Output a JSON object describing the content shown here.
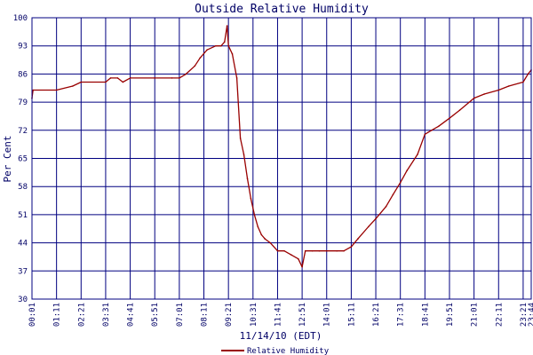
{
  "chart_data": {
    "type": "line",
    "title": "Outside Relative Humidity",
    "xlabel": "11/14/10 (EDT)",
    "ylabel": "Per Cent",
    "ylim": [
      30,
      100
    ],
    "xlim": [
      "00:01",
      "23:44"
    ],
    "grid": true,
    "legend_position": "bottom-center",
    "colors": {
      "series": "#990000",
      "grid": "#000080",
      "text": "#000066",
      "background": "#ffffff"
    },
    "y_ticks": [
      30,
      37,
      44,
      51,
      58,
      65,
      72,
      79,
      86,
      93,
      100
    ],
    "x_tick_labels": [
      "00:01",
      "01:11",
      "02:21",
      "03:31",
      "04:41",
      "05:51",
      "07:01",
      "08:11",
      "09:21",
      "10:31",
      "11:41",
      "12:51",
      "14:01",
      "15:11",
      "16:21",
      "17:31",
      "18:41",
      "19:51",
      "21:01",
      "22:11",
      "23:21",
      "23:44"
    ],
    "series": [
      {
        "name": "Relative Humidity",
        "x": [
          "00:01",
          "00:04",
          "01:11",
          "01:57",
          "02:21",
          "03:31",
          "03:45",
          "04:05",
          "04:20",
          "04:41",
          "05:51",
          "06:40",
          "07:01",
          "07:20",
          "07:45",
          "08:00",
          "08:20",
          "08:45",
          "09:00",
          "09:10",
          "09:17",
          "09:21",
          "09:32",
          "09:45",
          "09:55",
          "10:05",
          "10:15",
          "10:25",
          "10:35",
          "10:45",
          "10:55",
          "11:05",
          "11:20",
          "11:41",
          "12:00",
          "12:20",
          "12:40",
          "12:51",
          "13:00",
          "13:20",
          "13:40",
          "14:01",
          "14:30",
          "14:50",
          "15:11",
          "15:30",
          "16:00",
          "16:21",
          "16:50",
          "17:10",
          "17:31",
          "17:50",
          "18:20",
          "18:41",
          "19:00",
          "19:20",
          "19:51",
          "20:20",
          "21:01",
          "21:30",
          "22:11",
          "22:40",
          "23:21",
          "23:35",
          "23:44"
        ],
        "y": [
          80,
          82,
          82,
          83,
          84,
          84,
          85,
          85,
          84,
          85,
          85,
          85,
          85,
          86,
          88,
          90,
          92,
          93,
          93,
          94,
          98,
          93,
          91,
          85,
          70,
          66,
          60,
          55,
          51,
          48,
          46,
          45,
          44,
          42,
          42,
          41,
          40,
          38,
          42,
          42,
          42,
          42,
          42,
          42,
          43,
          45,
          48,
          50,
          53,
          56,
          59,
          62,
          66,
          71,
          72,
          73,
          75,
          77,
          80,
          81,
          82,
          83,
          84,
          86,
          87
        ]
      }
    ]
  }
}
